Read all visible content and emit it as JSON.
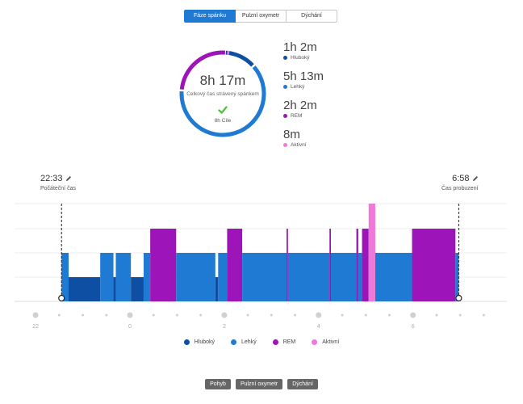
{
  "tabs": [
    {
      "label": "Fáze spánku",
      "active": true
    },
    {
      "label": "Pulzní oxymetr",
      "active": false
    },
    {
      "label": "Dýchání",
      "active": false
    }
  ],
  "summary": {
    "total": "8h 17m",
    "total_label": "Celkový čas strávený spánkem",
    "goal": "8h Cíle",
    "ring_fractions": {
      "deep": 0.125,
      "light": 0.63,
      "rem": 0.25,
      "awake": 0.016
    }
  },
  "stats": [
    {
      "value": "1h 2m",
      "label": "Hluboký",
      "color": "#0e4fa3"
    },
    {
      "value": "5h 13m",
      "label": "Lehký",
      "color": "#1f7ad4"
    },
    {
      "value": "2h 2m",
      "label": "REM",
      "color": "#9d14b8"
    },
    {
      "value": "8m",
      "label": "Aktivní",
      "color": "#ee79d9"
    }
  ],
  "start": {
    "time": "22:33",
    "label": "Počáteční čas"
  },
  "end": {
    "time": "6:58",
    "label": "Čas probuzení"
  },
  "axis_labels": [
    "22",
    "0",
    "2",
    "4",
    "6"
  ],
  "legend": [
    {
      "label": "Hluboký",
      "color": "#0e4fa3"
    },
    {
      "label": "Lehký",
      "color": "#1f7ad4"
    },
    {
      "label": "REM",
      "color": "#9d14b8"
    },
    {
      "label": "Aktivní",
      "color": "#ee79d9"
    }
  ],
  "colors": {
    "deep": "#0e4fa3",
    "light": "#1f7ad4",
    "rem": "#9d14b8",
    "awake": "#ee79d9",
    "track": "#e6e6e6"
  },
  "hypnogram": {
    "x_unit": "hours since midnight (22 = -2)",
    "start_hour": -1.45,
    "end_hour": 6.97,
    "segments": [
      {
        "from": -1.45,
        "to": -1.3,
        "stage": "light"
      },
      {
        "from": -1.3,
        "to": -0.63,
        "stage": "deep"
      },
      {
        "from": -0.63,
        "to": -0.35,
        "stage": "light"
      },
      {
        "from": -0.35,
        "to": -0.3,
        "stage": "deep"
      },
      {
        "from": -0.3,
        "to": 0.02,
        "stage": "light"
      },
      {
        "from": 0.02,
        "to": 0.29,
        "stage": "deep"
      },
      {
        "from": 0.29,
        "to": 0.43,
        "stage": "light"
      },
      {
        "from": 0.43,
        "to": 0.98,
        "stage": "rem"
      },
      {
        "from": 0.98,
        "to": 1.81,
        "stage": "light"
      },
      {
        "from": 1.81,
        "to": 1.87,
        "stage": "deep"
      },
      {
        "from": 1.87,
        "to": 2.06,
        "stage": "light"
      },
      {
        "from": 2.06,
        "to": 2.38,
        "stage": "rem"
      },
      {
        "from": 2.38,
        "to": 3.32,
        "stage": "light"
      },
      {
        "from": 3.32,
        "to": 3.35,
        "stage": "rem"
      },
      {
        "from": 3.35,
        "to": 4.23,
        "stage": "light"
      },
      {
        "from": 4.23,
        "to": 4.26,
        "stage": "rem"
      },
      {
        "from": 4.26,
        "to": 4.8,
        "stage": "light"
      },
      {
        "from": 4.8,
        "to": 4.84,
        "stage": "rem"
      },
      {
        "from": 4.84,
        "to": 4.92,
        "stage": "light"
      },
      {
        "from": 4.92,
        "to": 5.06,
        "stage": "rem"
      },
      {
        "from": 5.06,
        "to": 5.2,
        "stage": "awake"
      },
      {
        "from": 5.2,
        "to": 5.98,
        "stage": "light"
      },
      {
        "from": 5.98,
        "to": 6.9,
        "stage": "rem"
      },
      {
        "from": 6.9,
        "to": 6.97,
        "stage": "light"
      }
    ]
  },
  "bottom_buttons": [
    "Pohyb",
    "Pulzní oxymetr",
    "Dýchání"
  ]
}
